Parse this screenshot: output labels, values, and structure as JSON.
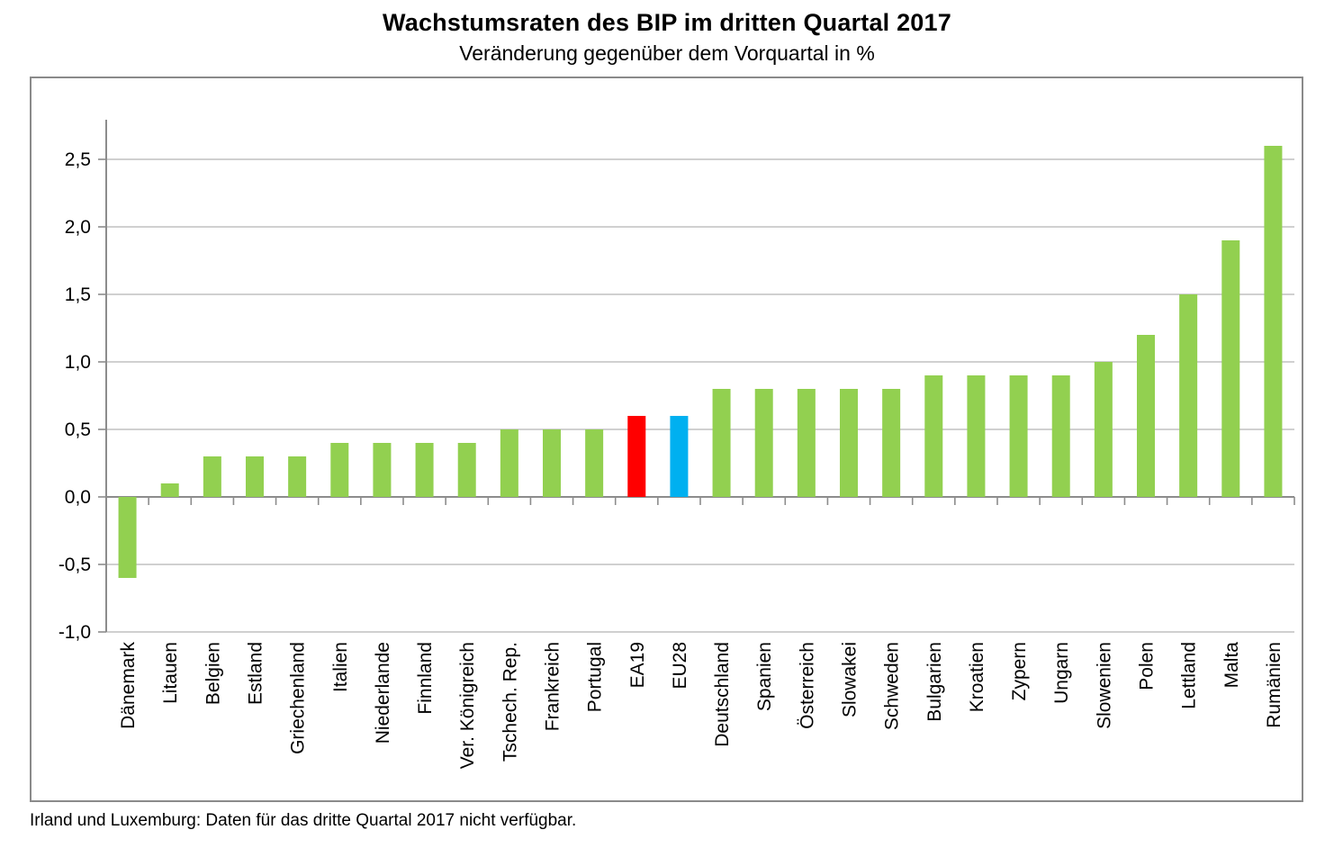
{
  "footnote": "Irland und Luxemburg: Daten für das dritte Quartal 2017 nicht verfügbar.",
  "chart_data": {
    "type": "bar",
    "title": "Wachstumsraten des BIP im dritten Quartal 2017",
    "subtitle": "Veränderung gegenüber dem Vorquartal in %",
    "categories": [
      "Dänemark",
      "Litauen",
      "Belgien",
      "Estland",
      "Griechenland",
      "Italien",
      "Niederlande",
      "Finnland",
      "Ver. Königreich",
      "Tschech. Rep.",
      "Frankreich",
      "Portugal",
      "EA19",
      "EU28",
      "Deutschland",
      "Spanien",
      "Österreich",
      "Slowakei",
      "Schweden",
      "Bulgarien",
      "Kroatien",
      "Zypern",
      "Ungarn",
      "Slowenien",
      "Polen",
      "Lettland",
      "Malta",
      "Rumänien"
    ],
    "values": [
      -0.6,
      0.1,
      0.3,
      0.3,
      0.3,
      0.4,
      0.4,
      0.4,
      0.4,
      0.5,
      0.5,
      0.5,
      0.6,
      0.6,
      0.8,
      0.8,
      0.8,
      0.8,
      0.8,
      0.9,
      0.9,
      0.9,
      0.9,
      1.0,
      1.2,
      1.5,
      1.9,
      2.6
    ],
    "default_bar_color": "#92D050",
    "highlight_colors": {
      "EA19": "#FF0000",
      "EU28": "#00B0F0"
    },
    "ylim": [
      -1.0,
      2.5
    ],
    "ytick_step": 0.5,
    "ytick_labels": [
      "2,5",
      "2,0",
      "1,5",
      "1,0",
      "0,5",
      "0,0",
      "-0,5",
      "-1,0"
    ],
    "decimal_separator": ",",
    "grid": true,
    "grid_color": "#C0C0C0",
    "axis_color": "#8C8C8C",
    "text_color": "#000000",
    "legend": "none",
    "xlabel": "",
    "ylabel": ""
  }
}
